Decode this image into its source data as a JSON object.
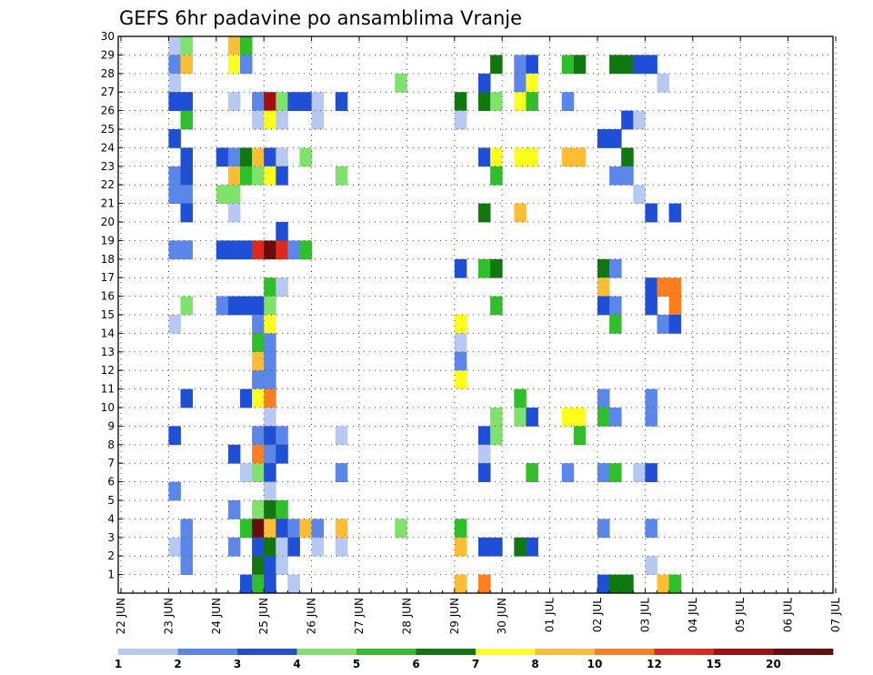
{
  "chart_data": {
    "type": "heatmap",
    "title": "GEFS 6hr padavine po ansamblima Vranje",
    "xlabel": "",
    "ylabel": "",
    "y_tick_labels": [
      "1",
      "2",
      "3",
      "4",
      "5",
      "6",
      "7",
      "8",
      "9",
      "10",
      "11",
      "12",
      "13",
      "14",
      "15",
      "16",
      "17",
      "18",
      "19",
      "20",
      "21",
      "22",
      "23",
      "24",
      "25",
      "26",
      "27",
      "28",
      "29",
      "30"
    ],
    "x_tick_labels": [
      "22 JUN",
      "23 JUN",
      "24 JUN",
      "25 JUN",
      "26 JUN",
      "27 JUN",
      "28 JUN",
      "29 JUN",
      "30 JUN",
      "01 JUL",
      "02 JUL",
      "03 JUL",
      "04 JUL",
      "05 JUL",
      "06 JUL",
      "07 JUL"
    ],
    "time_steps_per_day": 4,
    "grid": true,
    "legend": {
      "placement": "bottom",
      "bin_labels": [
        "1",
        "2",
        "3",
        "4",
        "5",
        "6",
        "7",
        "8",
        "10",
        "12",
        "15",
        "20"
      ],
      "colors": [
        "#b7c9f2",
        "#5b86ea",
        "#1e4fd6",
        "#7ee26b",
        "#2fbf2a",
        "#10780f",
        "#ffff1e",
        "#ffbd33",
        "#ff7f1e",
        "#e0281b",
        "#a30f0f",
        "#6b0c0c"
      ]
    },
    "cells": [
      {
        "t": 4,
        "m": 30,
        "c": 1
      },
      {
        "t": 4,
        "m": 29,
        "c": 2
      },
      {
        "t": 4,
        "m": 28,
        "c": 1
      },
      {
        "t": 4,
        "m": 27,
        "c": 3
      },
      {
        "t": 4,
        "m": 25,
        "c": 3
      },
      {
        "t": 4,
        "m": 23,
        "c": 2
      },
      {
        "t": 4,
        "m": 22,
        "c": 2
      },
      {
        "t": 4,
        "m": 19,
        "c": 2
      },
      {
        "t": 4,
        "m": 15,
        "c": 1
      },
      {
        "t": 4,
        "m": 9,
        "c": 3
      },
      {
        "t": 4,
        "m": 6,
        "c": 2
      },
      {
        "t": 4,
        "m": 3,
        "c": 1
      },
      {
        "t": 5,
        "m": 30,
        "c": 4
      },
      {
        "t": 5,
        "m": 29,
        "c": 8
      },
      {
        "t": 5,
        "m": 27,
        "c": 3
      },
      {
        "t": 5,
        "m": 26,
        "c": 5
      },
      {
        "t": 5,
        "m": 24,
        "c": 3
      },
      {
        "t": 5,
        "m": 23,
        "c": 3
      },
      {
        "t": 5,
        "m": 22,
        "c": 2
      },
      {
        "t": 5,
        "m": 21,
        "c": 3
      },
      {
        "t": 5,
        "m": 19,
        "c": 2
      },
      {
        "t": 5,
        "m": 16,
        "c": 4
      },
      {
        "t": 5,
        "m": 11,
        "c": 3
      },
      {
        "t": 5,
        "m": 4,
        "c": 2
      },
      {
        "t": 5,
        "m": 3,
        "c": 2
      },
      {
        "t": 5,
        "m": 2,
        "c": 2
      },
      {
        "t": 8,
        "m": 24,
        "c": 3
      },
      {
        "t": 8,
        "m": 22,
        "c": 4
      },
      {
        "t": 8,
        "m": 19,
        "c": 3
      },
      {
        "t": 8,
        "m": 16,
        "c": 2
      },
      {
        "t": 9,
        "m": 30,
        "c": 8
      },
      {
        "t": 9,
        "m": 29,
        "c": 7
      },
      {
        "t": 9,
        "m": 27,
        "c": 1
      },
      {
        "t": 9,
        "m": 24,
        "c": 2
      },
      {
        "t": 9,
        "m": 23,
        "c": 8
      },
      {
        "t": 9,
        "m": 22,
        "c": 4
      },
      {
        "t": 9,
        "m": 21,
        "c": 1
      },
      {
        "t": 9,
        "m": 19,
        "c": 3
      },
      {
        "t": 9,
        "m": 16,
        "c": 3
      },
      {
        "t": 9,
        "m": 8,
        "c": 3
      },
      {
        "t": 9,
        "m": 5,
        "c": 2
      },
      {
        "t": 9,
        "m": 3,
        "c": 2
      },
      {
        "t": 10,
        "m": 30,
        "c": 5
      },
      {
        "t": 10,
        "m": 29,
        "c": 2
      },
      {
        "t": 10,
        "m": 24,
        "c": 6
      },
      {
        "t": 10,
        "m": 23,
        "c": 5
      },
      {
        "t": 10,
        "m": 19,
        "c": 3
      },
      {
        "t": 10,
        "m": 16,
        "c": 3
      },
      {
        "t": 10,
        "m": 11,
        "c": 3
      },
      {
        "t": 10,
        "m": 7,
        "c": 1
      },
      {
        "t": 10,
        "m": 4,
        "c": 5
      },
      {
        "t": 10,
        "m": 1,
        "c": 3
      },
      {
        "t": 11,
        "m": 27,
        "c": 2
      },
      {
        "t": 11,
        "m": 26,
        "c": 1
      },
      {
        "t": 11,
        "m": 24,
        "c": 8
      },
      {
        "t": 11,
        "m": 23,
        "c": 4
      },
      {
        "t": 11,
        "m": 19,
        "c": 10
      },
      {
        "t": 11,
        "m": 16,
        "c": 3
      },
      {
        "t": 11,
        "m": 15,
        "c": 2
      },
      {
        "t": 11,
        "m": 14,
        "c": 5
      },
      {
        "t": 11,
        "m": 13,
        "c": 8
      },
      {
        "t": 11,
        "m": 12,
        "c": 2
      },
      {
        "t": 11,
        "m": 11,
        "c": 7
      },
      {
        "t": 11,
        "m": 9,
        "c": 2
      },
      {
        "t": 11,
        "m": 8,
        "c": 9
      },
      {
        "t": 11,
        "m": 7,
        "c": 4
      },
      {
        "t": 11,
        "m": 5,
        "c": 4
      },
      {
        "t": 11,
        "m": 4,
        "c": 12
      },
      {
        "t": 11,
        "m": 3,
        "c": 3
      },
      {
        "t": 11,
        "m": 2,
        "c": 6
      },
      {
        "t": 11,
        "m": 1,
        "c": 5
      },
      {
        "t": 12,
        "m": 27,
        "c": 11
      },
      {
        "t": 12,
        "m": 26,
        "c": 7
      },
      {
        "t": 12,
        "m": 24,
        "c": 3
      },
      {
        "t": 12,
        "m": 23,
        "c": 7
      },
      {
        "t": 12,
        "m": 19,
        "c": 12
      },
      {
        "t": 12,
        "m": 17,
        "c": 5
      },
      {
        "t": 12,
        "m": 16,
        "c": 4
      },
      {
        "t": 12,
        "m": 15,
        "c": 7
      },
      {
        "t": 12,
        "m": 14,
        "c": 2
      },
      {
        "t": 12,
        "m": 13,
        "c": 2
      },
      {
        "t": 12,
        "m": 12,
        "c": 2
      },
      {
        "t": 12,
        "m": 11,
        "c": 9
      },
      {
        "t": 12,
        "m": 10,
        "c": 1
      },
      {
        "t": 12,
        "m": 9,
        "c": 3
      },
      {
        "t": 12,
        "m": 8,
        "c": 2
      },
      {
        "t": 12,
        "m": 7,
        "c": 3
      },
      {
        "t": 12,
        "m": 6,
        "c": 1
      },
      {
        "t": 12,
        "m": 5,
        "c": 6
      },
      {
        "t": 12,
        "m": 4,
        "c": 8
      },
      {
        "t": 12,
        "m": 3,
        "c": 6
      },
      {
        "t": 12,
        "m": 2,
        "c": 3
      },
      {
        "t": 12,
        "m": 1,
        "c": 3
      },
      {
        "t": 13,
        "m": 27,
        "c": 4
      },
      {
        "t": 13,
        "m": 26,
        "c": 1
      },
      {
        "t": 13,
        "m": 24,
        "c": 1
      },
      {
        "t": 13,
        "m": 23,
        "c": 3
      },
      {
        "t": 13,
        "m": 20,
        "c": 3
      },
      {
        "t": 13,
        "m": 19,
        "c": 10
      },
      {
        "t": 13,
        "m": 17,
        "c": 1
      },
      {
        "t": 13,
        "m": 9,
        "c": 2
      },
      {
        "t": 13,
        "m": 8,
        "c": 3
      },
      {
        "t": 13,
        "m": 5,
        "c": 5
      },
      {
        "t": 13,
        "m": 4,
        "c": 3
      },
      {
        "t": 13,
        "m": 3,
        "c": 1
      },
      {
        "t": 13,
        "m": 2,
        "c": 1
      },
      {
        "t": 14,
        "m": 27,
        "c": 3
      },
      {
        "t": 14,
        "m": 19,
        "c": 2
      },
      {
        "t": 14,
        "m": 4,
        "c": 2
      },
      {
        "t": 14,
        "m": 3,
        "c": 3
      },
      {
        "t": 14,
        "m": 1,
        "c": 1
      },
      {
        "t": 15,
        "m": 27,
        "c": 3
      },
      {
        "t": 15,
        "m": 24,
        "c": 4
      },
      {
        "t": 15,
        "m": 19,
        "c": 5
      },
      {
        "t": 15,
        "m": 4,
        "c": 8
      },
      {
        "t": 16,
        "m": 27,
        "c": 1
      },
      {
        "t": 16,
        "m": 26,
        "c": 1
      },
      {
        "t": 16,
        "m": 4,
        "c": 2
      },
      {
        "t": 16,
        "m": 3,
        "c": 1
      },
      {
        "t": 18,
        "m": 27,
        "c": 3
      },
      {
        "t": 18,
        "m": 23,
        "c": 4
      },
      {
        "t": 18,
        "m": 9,
        "c": 1
      },
      {
        "t": 18,
        "m": 7,
        "c": 2
      },
      {
        "t": 18,
        "m": 4,
        "c": 8
      },
      {
        "t": 18,
        "m": 3,
        "c": 1
      },
      {
        "t": 23,
        "m": 28,
        "c": 4
      },
      {
        "t": 23,
        "m": 4,
        "c": 4
      },
      {
        "t": 28,
        "m": 27,
        "c": 6
      },
      {
        "t": 28,
        "m": 26,
        "c": 1
      },
      {
        "t": 28,
        "m": 18,
        "c": 3
      },
      {
        "t": 28,
        "m": 15,
        "c": 7
      },
      {
        "t": 28,
        "m": 14,
        "c": 1
      },
      {
        "t": 28,
        "m": 13,
        "c": 2
      },
      {
        "t": 28,
        "m": 12,
        "c": 7
      },
      {
        "t": 28,
        "m": 4,
        "c": 5
      },
      {
        "t": 28,
        "m": 3,
        "c": 8
      },
      {
        "t": 28,
        "m": 1,
        "c": 8
      },
      {
        "t": 30,
        "m": 28,
        "c": 3
      },
      {
        "t": 30,
        "m": 27,
        "c": 6
      },
      {
        "t": 30,
        "m": 24,
        "c": 3
      },
      {
        "t": 30,
        "m": 21,
        "c": 6
      },
      {
        "t": 30,
        "m": 18,
        "c": 5
      },
      {
        "t": 30,
        "m": 9,
        "c": 3
      },
      {
        "t": 30,
        "m": 8,
        "c": 1
      },
      {
        "t": 30,
        "m": 7,
        "c": 3
      },
      {
        "t": 30,
        "m": 3,
        "c": 3
      },
      {
        "t": 30,
        "m": 1,
        "c": 9
      },
      {
        "t": 31,
        "m": 29,
        "c": 6
      },
      {
        "t": 31,
        "m": 27,
        "c": 4
      },
      {
        "t": 31,
        "m": 24,
        "c": 7
      },
      {
        "t": 31,
        "m": 23,
        "c": 5
      },
      {
        "t": 31,
        "m": 18,
        "c": 6
      },
      {
        "t": 31,
        "m": 16,
        "c": 5
      },
      {
        "t": 31,
        "m": 10,
        "c": 4
      },
      {
        "t": 31,
        "m": 9,
        "c": 4
      },
      {
        "t": 31,
        "m": 3,
        "c": 3
      },
      {
        "t": 33,
        "m": 29,
        "c": 2
      },
      {
        "t": 33,
        "m": 28,
        "c": 2
      },
      {
        "t": 33,
        "m": 27,
        "c": 7
      },
      {
        "t": 33,
        "m": 24,
        "c": 7
      },
      {
        "t": 33,
        "m": 21,
        "c": 8
      },
      {
        "t": 33,
        "m": 11,
        "c": 5
      },
      {
        "t": 33,
        "m": 10,
        "c": 4
      },
      {
        "t": 33,
        "m": 3,
        "c": 6
      },
      {
        "t": 34,
        "m": 29,
        "c": 3
      },
      {
        "t": 34,
        "m": 28,
        "c": 7
      },
      {
        "t": 34,
        "m": 27,
        "c": 5
      },
      {
        "t": 34,
        "m": 24,
        "c": 7
      },
      {
        "t": 34,
        "m": 10,
        "c": 3
      },
      {
        "t": 34,
        "m": 7,
        "c": 5
      },
      {
        "t": 34,
        "m": 3,
        "c": 3
      },
      {
        "t": 37,
        "m": 29,
        "c": 5
      },
      {
        "t": 37,
        "m": 27,
        "c": 2
      },
      {
        "t": 37,
        "m": 24,
        "c": 8
      },
      {
        "t": 37,
        "m": 10,
        "c": 7
      },
      {
        "t": 37,
        "m": 7,
        "c": 2
      },
      {
        "t": 38,
        "m": 29,
        "c": 6
      },
      {
        "t": 38,
        "m": 24,
        "c": 8
      },
      {
        "t": 38,
        "m": 10,
        "c": 7
      },
      {
        "t": 38,
        "m": 9,
        "c": 5
      },
      {
        "t": 40,
        "m": 25,
        "c": 3
      },
      {
        "t": 40,
        "m": 18,
        "c": 6
      },
      {
        "t": 40,
        "m": 17,
        "c": 8
      },
      {
        "t": 40,
        "m": 16,
        "c": 3
      },
      {
        "t": 40,
        "m": 11,
        "c": 2
      },
      {
        "t": 40,
        "m": 10,
        "c": 5
      },
      {
        "t": 40,
        "m": 7,
        "c": 2
      },
      {
        "t": 40,
        "m": 4,
        "c": 2
      },
      {
        "t": 40,
        "m": 1,
        "c": 3
      },
      {
        "t": 41,
        "m": 29,
        "c": 6
      },
      {
        "t": 41,
        "m": 25,
        "c": 3
      },
      {
        "t": 41,
        "m": 23,
        "c": 2
      },
      {
        "t": 41,
        "m": 18,
        "c": 2
      },
      {
        "t": 41,
        "m": 16,
        "c": 2
      },
      {
        "t": 41,
        "m": 15,
        "c": 5
      },
      {
        "t": 41,
        "m": 10,
        "c": 2
      },
      {
        "t": 41,
        "m": 7,
        "c": 5
      },
      {
        "t": 41,
        "m": 1,
        "c": 6
      },
      {
        "t": 42,
        "m": 29,
        "c": 6
      },
      {
        "t": 42,
        "m": 26,
        "c": 3
      },
      {
        "t": 42,
        "m": 24,
        "c": 6
      },
      {
        "t": 42,
        "m": 23,
        "c": 2
      },
      {
        "t": 42,
        "m": 1,
        "c": 6
      },
      {
        "t": 43,
        "m": 29,
        "c": 3
      },
      {
        "t": 43,
        "m": 26,
        "c": 1
      },
      {
        "t": 43,
        "m": 22,
        "c": 1
      },
      {
        "t": 43,
        "m": 7,
        "c": 1
      },
      {
        "t": 44,
        "m": 29,
        "c": 3
      },
      {
        "t": 44,
        "m": 21,
        "c": 3
      },
      {
        "t": 44,
        "m": 17,
        "c": 3
      },
      {
        "t": 44,
        "m": 16,
        "c": 3
      },
      {
        "t": 44,
        "m": 11,
        "c": 2
      },
      {
        "t": 44,
        "m": 10,
        "c": 2
      },
      {
        "t": 44,
        "m": 7,
        "c": 3
      },
      {
        "t": 44,
        "m": 4,
        "c": 2
      },
      {
        "t": 44,
        "m": 2,
        "c": 1
      },
      {
        "t": 45,
        "m": 28,
        "c": 1
      },
      {
        "t": 45,
        "m": 17,
        "c": 9
      },
      {
        "t": 45,
        "m": 15,
        "c": 2
      },
      {
        "t": 45,
        "m": 1,
        "c": 8
      },
      {
        "t": 46,
        "m": 21,
        "c": 3
      },
      {
        "t": 46,
        "m": 17,
        "c": 9
      },
      {
        "t": 46,
        "m": 16,
        "c": 9
      },
      {
        "t": 46,
        "m": 15,
        "c": 3
      },
      {
        "t": 46,
        "m": 1,
        "c": 5
      }
    ]
  }
}
